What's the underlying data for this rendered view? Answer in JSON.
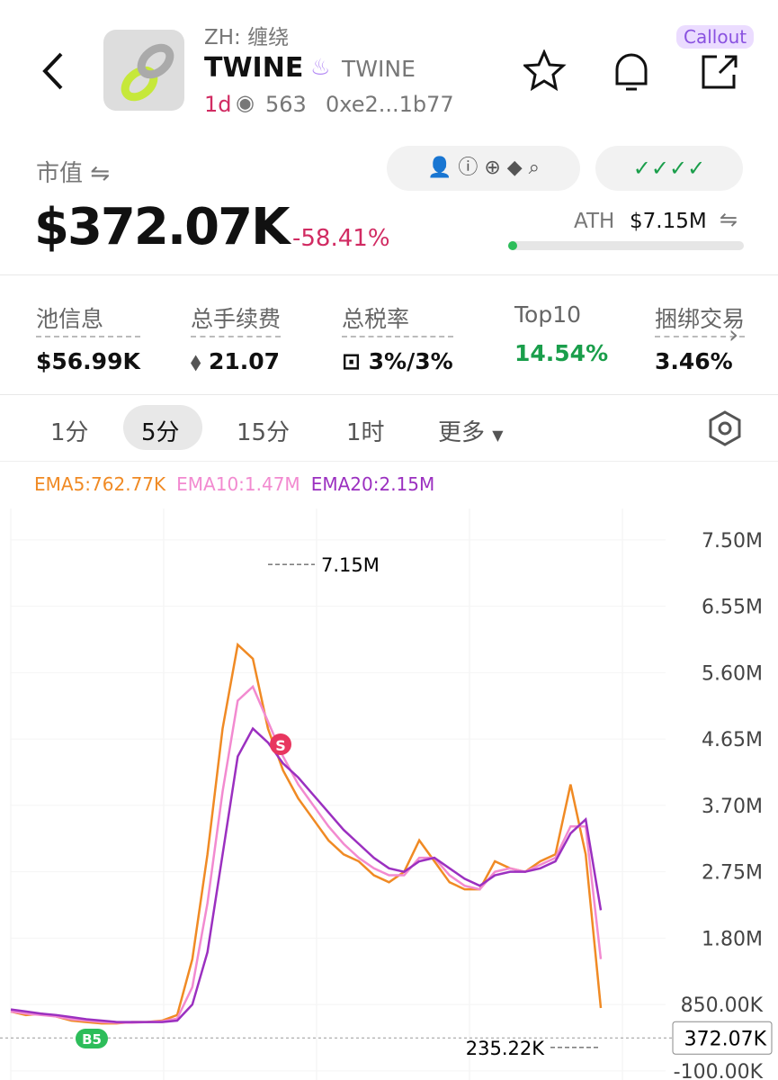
{
  "header": {
    "subtitle": "ZH: 缠绕",
    "name": "TWINE",
    "ticker": "TWINE",
    "age": "1d",
    "views": "563",
    "address": "0xe2...1b77",
    "callout": "Callout"
  },
  "market": {
    "label": "市值",
    "value": "$372.07K",
    "change": "-58.41%",
    "ath_label": "ATH",
    "ath_value": "$7.15M"
  },
  "stats": [
    {
      "label": "池信息",
      "value": "$56.99K"
    },
    {
      "label": "总手续费",
      "value": "21.07"
    },
    {
      "label": "总税率",
      "value": "3%/3%"
    },
    {
      "label": "Top10",
      "value": "14.54%"
    },
    {
      "label": "捆绑交易",
      "value": "3.46%"
    }
  ],
  "tabs": [
    "1分",
    "5分",
    "15分",
    "1时",
    "更多"
  ],
  "chart_data": {
    "type": "line",
    "series": [
      {
        "name": "EMA5:762.77K",
        "color": "#f08a24",
        "values": [
          750000,
          700000,
          720000,
          680000,
          620000,
          600000,
          580000,
          580000,
          600000,
          600000,
          620000,
          700000,
          1500000,
          3000000,
          4800000,
          6000000,
          5800000,
          4800000,
          4200000,
          3800000,
          3500000,
          3200000,
          3000000,
          2900000,
          2700000,
          2600000,
          2750000,
          3200000,
          2900000,
          2600000,
          2500000,
          2500000,
          2900000,
          2800000,
          2750000,
          2900000,
          3000000,
          4000000,
          3000000,
          800000
        ]
      },
      {
        "name": "EMA10:1.47M",
        "color": "#f28ad0",
        "values": [
          750000,
          720000,
          700000,
          680000,
          640000,
          620000,
          600000,
          590000,
          590000,
          600000,
          610000,
          650000,
          1100000,
          2300000,
          3900000,
          5200000,
          5400000,
          4900000,
          4400000,
          4000000,
          3700000,
          3400000,
          3150000,
          2950000,
          2800000,
          2700000,
          2700000,
          2950000,
          2950000,
          2700000,
          2550000,
          2500000,
          2750000,
          2800000,
          2750000,
          2850000,
          2950000,
          3400000,
          3400000,
          1500000
        ]
      },
      {
        "name": "EMA20:2.15M",
        "color": "#9b30c0",
        "values": [
          780000,
          750000,
          720000,
          700000,
          670000,
          640000,
          620000,
          600000,
          600000,
          600000,
          600000,
          620000,
          850000,
          1600000,
          3000000,
          4400000,
          4800000,
          4600000,
          4300000,
          4100000,
          3850000,
          3600000,
          3350000,
          3150000,
          2950000,
          2800000,
          2750000,
          2900000,
          2950000,
          2800000,
          2650000,
          2550000,
          2700000,
          2750000,
          2750000,
          2800000,
          2900000,
          3300000,
          3500000,
          2200000
        ]
      }
    ],
    "ylim": [
      -230000,
      7950000
    ],
    "yticks": [
      {
        "value": -100000,
        "label": "-100.00K"
      },
      {
        "value": 850000,
        "label": "850.00K"
      },
      {
        "value": 1800000,
        "label": "1.80M"
      },
      {
        "value": 2750000,
        "label": "2.75M"
      },
      {
        "value": 3700000,
        "label": "3.70M"
      },
      {
        "value": 4650000,
        "label": "4.65M"
      },
      {
        "value": 5600000,
        "label": "5.60M"
      },
      {
        "value": 6550000,
        "label": "6.55M"
      },
      {
        "value": 7500000,
        "label": "7.50M"
      }
    ],
    "high": {
      "value": 7150000,
      "label": "7.15M"
    },
    "low": {
      "value": 235220,
      "label": "235.22K"
    },
    "current": {
      "value": 372070,
      "label": "372.07K"
    },
    "markers": [
      "S",
      "B5"
    ]
  }
}
